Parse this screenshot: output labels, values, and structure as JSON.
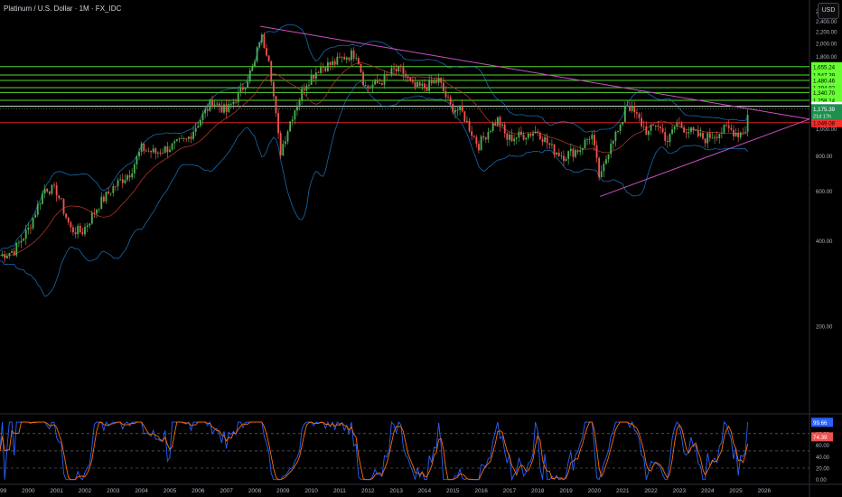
{
  "header": {
    "symbol_title": "Platinum / U.S. Dollar · 1M · FX_IDC",
    "currency": "USD"
  },
  "colors": {
    "up": "#26a69a",
    "up_bright": "#4caf50",
    "down": "#ef5350",
    "trend": "#c850c0",
    "band": "#2196f3",
    "support": "#ff2b2b",
    "level": "#66ff33",
    "ma": "#c0392b"
  },
  "chart_data": [
    {
      "type": "candlestick",
      "title": "Platinum / U.S. Dollar · 1M · FX_IDC",
      "x_ticks": [
        "1999",
        "2000",
        "2001",
        "2002",
        "2003",
        "2004",
        "2005",
        "2006",
        "2007",
        "2008",
        "2009",
        "2010",
        "2011",
        "2012",
        "2013",
        "2014",
        "2015",
        "2016",
        "2017",
        "2018",
        "2019",
        "2020",
        "2021",
        "2022",
        "2023",
        "2024",
        "2025",
        "2026"
      ],
      "y_ticks": [
        "200.00",
        "400.00",
        "600.00",
        "800.00",
        "1,000.00",
        "1,200.00",
        "1,400.00",
        "1,600.00",
        "1,800.00",
        "2,000.00",
        "2,200.00",
        "2,400.00",
        "2,600.00",
        "2,800.00"
      ],
      "ylim": [
        100,
        2850
      ],
      "y_scale": "log",
      "xlim": [
        1999.0,
        2027.6
      ],
      "yearly_path": [
        [
          1999.0,
          355
        ],
        [
          1999.5,
          370
        ],
        [
          2000.0,
          440
        ],
        [
          2000.6,
          620
        ],
        [
          2001.0,
          600
        ],
        [
          2001.5,
          440
        ],
        [
          2001.9,
          430
        ],
        [
          2002.5,
          540
        ],
        [
          2003.0,
          620
        ],
        [
          2003.6,
          700
        ],
        [
          2004.0,
          850
        ],
        [
          2004.5,
          820
        ],
        [
          2005.0,
          860
        ],
        [
          2005.6,
          910
        ],
        [
          2006.0,
          1050
        ],
        [
          2006.5,
          1250
        ],
        [
          2007.0,
          1150
        ],
        [
          2007.5,
          1350
        ],
        [
          2008.0,
          1700
        ],
        [
          2008.2,
          2150
        ],
        [
          2008.5,
          1800
        ],
        [
          2008.9,
          820
        ],
        [
          2009.3,
          1100
        ],
        [
          2009.8,
          1450
        ],
        [
          2010.3,
          1650
        ],
        [
          2010.8,
          1700
        ],
        [
          2011.2,
          1800
        ],
        [
          2011.6,
          1850
        ],
        [
          2011.9,
          1400
        ],
        [
          2012.4,
          1450
        ],
        [
          2012.9,
          1600
        ],
        [
          2013.2,
          1600
        ],
        [
          2013.6,
          1400
        ],
        [
          2014.0,
          1400
        ],
        [
          2014.5,
          1480
        ],
        [
          2014.9,
          1200
        ],
        [
          2015.3,
          1150
        ],
        [
          2015.9,
          870
        ],
        [
          2016.3,
          1000
        ],
        [
          2016.6,
          1080
        ],
        [
          2016.9,
          920
        ],
        [
          2017.5,
          950
        ],
        [
          2018.0,
          980
        ],
        [
          2018.5,
          850
        ],
        [
          2018.9,
          800
        ],
        [
          2019.5,
          850
        ],
        [
          2019.9,
          960
        ],
        [
          2020.2,
          650
        ],
        [
          2020.6,
          920
        ],
        [
          2020.95,
          1000
        ],
        [
          2021.1,
          1250
        ],
        [
          2021.5,
          1100
        ],
        [
          2021.9,
          960
        ],
        [
          2022.2,
          1050
        ],
        [
          2022.6,
          900
        ],
        [
          2022.9,
          1050
        ],
        [
          2023.2,
          1000
        ],
        [
          2023.6,
          950
        ],
        [
          2023.9,
          920
        ],
        [
          2024.3,
          960
        ],
        [
          2024.7,
          1000
        ],
        [
          2025.1,
          960
        ],
        [
          2025.35,
          1000
        ],
        [
          2025.45,
          1180
        ]
      ],
      "horizontal_levels": [
        {
          "value": 1655.24,
          "label": "1,655.24",
          "color": "#66ff33"
        },
        {
          "value": 1547.39,
          "label": "1,547.39",
          "color": "#66ff33"
        },
        {
          "value": 1480.46,
          "label": "1,480.46",
          "color": "#66ff33"
        },
        {
          "value": 1394.92,
          "label": "1,394.92",
          "color": "#66ff33"
        },
        {
          "value": 1340.7,
          "label": "1,340.70",
          "color": "#66ff33"
        },
        {
          "value": 1258.14,
          "label": "1,258.14",
          "color": "#66ff33"
        },
        {
          "value": 1198.54,
          "label": "1,198.54",
          "color": "#ffffff"
        },
        {
          "value": 1049.08,
          "label": "1,049.08",
          "color": "#ff2b2b"
        }
      ],
      "current_price": {
        "value": 1175.39,
        "label": "1,175.39",
        "countdown": "21d 17h"
      },
      "trend_lines": [
        {
          "from": [
            2008.2,
            2300
          ],
          "to": [
            2027.6,
            1080
          ]
        },
        {
          "from": [
            2020.2,
            575
          ],
          "to": [
            2027.6,
            1080
          ]
        }
      ]
    },
    {
      "type": "line",
      "title": "",
      "series": [
        {
          "name": "",
          "color": "#2962ff"
        },
        {
          "name": "",
          "color": "#ff6d00"
        }
      ],
      "ylim": [
        -2,
        108
      ],
      "y_ticks": [
        "0.00",
        "20.00",
        "40.00",
        "60.00",
        "80.00",
        "100.00"
      ],
      "dashed_levels": [
        80,
        50,
        20
      ],
      "last_values": [
        {
          "value": 99.66,
          "label": "99.66",
          "color": "#2962ff"
        },
        {
          "value": 74.39,
          "label": "74.39",
          "color": "#ef5350"
        }
      ],
      "x_ticks": [
        "1999",
        "2000",
        "2001",
        "2002",
        "2003",
        "2004",
        "2005",
        "2006",
        "2007",
        "2008",
        "2009",
        "2010",
        "2011",
        "2012",
        "2013",
        "2014",
        "2015",
        "2016",
        "2017",
        "2018",
        "2019",
        "2020",
        "2021",
        "2022",
        "2023",
        "2024",
        "2025",
        "2026"
      ]
    }
  ]
}
